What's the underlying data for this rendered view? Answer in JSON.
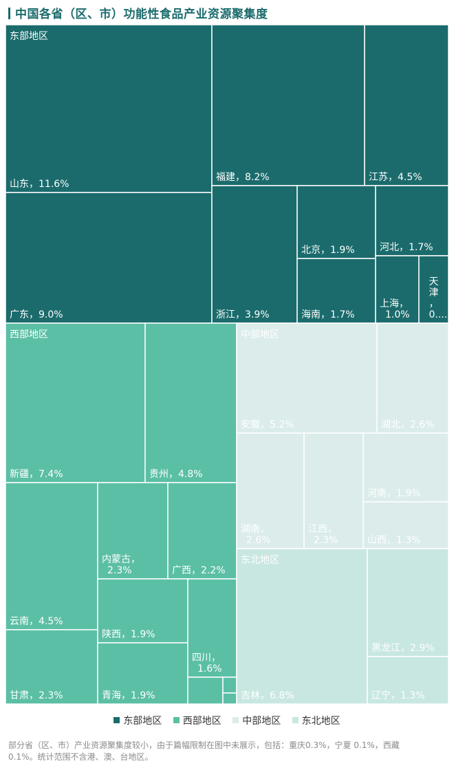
{
  "title": "中国各省（区、市）功能性食品产业资源聚集度",
  "footnote": "部分省（区、市）产业资源聚集度较小，由于篇幅限制在图中未展示，包括：重庆0.3%，宁夏 0.1%，西藏 0.1%。统计范围不含港、澳、台地区。",
  "legend": [
    {
      "label": "东部地区",
      "color": "#1b6b6c"
    },
    {
      "label": "西部地区",
      "color": "#5bbfa5"
    },
    {
      "label": "中部地区",
      "color": "#dbeceb"
    },
    {
      "label": "东北地区",
      "color": "#c8e7e1"
    }
  ],
  "chart_data": {
    "type": "treemap",
    "title": "中国各省（区、市）功能性食品产业资源聚集度",
    "unit": "%",
    "groups": [
      {
        "name": "东部地区",
        "color": "#1b6b6c",
        "label_color": "#ffffff",
        "items": [
          {
            "name": "山东",
            "value": 11.6,
            "label": "山东，11.6%"
          },
          {
            "name": "广东",
            "value": 9.0,
            "label": "广东，9.0%"
          },
          {
            "name": "福建",
            "value": 8.2,
            "label": "福建，8.2%"
          },
          {
            "name": "江苏",
            "value": 4.5,
            "label": "江苏，4.5%"
          },
          {
            "name": "浙江",
            "value": 3.9,
            "label": "浙江，3.9%"
          },
          {
            "name": "北京",
            "value": 1.9,
            "label": "北京，1.9%"
          },
          {
            "name": "海南",
            "value": 1.7,
            "label": "海南，1.7%"
          },
          {
            "name": "河北",
            "value": 1.7,
            "label": "河北，1.7%"
          },
          {
            "name": "上海",
            "value": 1.0,
            "label": "上海，1.0%"
          },
          {
            "name": "天津",
            "value": null,
            "label": "天津，0...."
          }
        ]
      },
      {
        "name": "西部地区",
        "color": "#5bbfa5",
        "label_color": "#ffffff",
        "items": [
          {
            "name": "新疆",
            "value": 7.4,
            "label": "新疆，7.4%"
          },
          {
            "name": "贵州",
            "value": 4.8,
            "label": "贵州，4.8%"
          },
          {
            "name": "云南",
            "value": 4.5,
            "label": "云南，4.5%"
          },
          {
            "name": "甘肃",
            "value": 2.3,
            "label": "甘肃，2.3%"
          },
          {
            "name": "内蒙古",
            "value": 2.3,
            "label": "内蒙古，2.3%"
          },
          {
            "name": "广西",
            "value": 2.2,
            "label": "广西，2.2%"
          },
          {
            "name": "陕西",
            "value": 1.9,
            "label": "陕西，1.9%"
          },
          {
            "name": "青海",
            "value": 1.9,
            "label": "青海，1.9%"
          },
          {
            "name": "四川",
            "value": 1.6,
            "label": "四川，1.6%"
          },
          {
            "name": "",
            "value": null,
            "label": ""
          },
          {
            "name": "",
            "value": null,
            "label": ""
          },
          {
            "name": "",
            "value": null,
            "label": ""
          }
        ]
      },
      {
        "name": "中部地区",
        "color": "#dbeceb",
        "label_color": "#ffffff",
        "items": [
          {
            "name": "安徽",
            "value": 5.2,
            "label": "安徽，5.2%"
          },
          {
            "name": "湖北",
            "value": 2.6,
            "label": "湖北，2.6%"
          },
          {
            "name": "湖南",
            "value": 2.6,
            "label": "湖南，2.6%"
          },
          {
            "name": "江西",
            "value": 2.3,
            "label": "江西，2.3%"
          },
          {
            "name": "河南",
            "value": 1.9,
            "label": "河南，1.9%"
          },
          {
            "name": "山西",
            "value": 1.3,
            "label": "山西，1.3%"
          }
        ]
      },
      {
        "name": "东北地区",
        "color": "#c8e7e1",
        "label_color": "#ffffff",
        "items": [
          {
            "name": "吉林",
            "value": 6.8,
            "label": "吉林，6.8%"
          },
          {
            "name": "黑龙江",
            "value": 2.9,
            "label": "黑龙江，2.9%"
          },
          {
            "name": "辽宁",
            "value": 1.3,
            "label": "辽宁，1.3%"
          }
        ]
      }
    ]
  }
}
